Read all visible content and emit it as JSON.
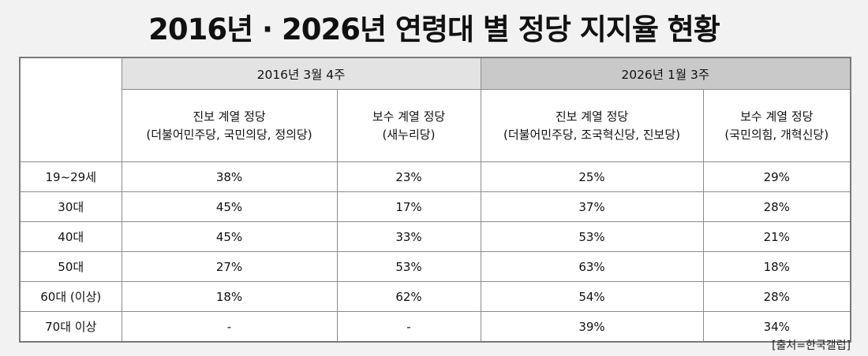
{
  "title": "2016년 · 2026년 연령대 별 정당 지지율 현황",
  "source": "[출처=한국갤럽]",
  "chart_data": {
    "type": "table",
    "title": "2016년 · 2026년 연령대 별 정당 지지율 현황",
    "periods": [
      "2016년 3월 4주",
      "2026년 1월 3주"
    ],
    "columns": [
      {
        "period": "2016년 3월 4주",
        "name": "진보 계열 정당",
        "parties": "(더불어민주당, 국민의당, 정의당)"
      },
      {
        "period": "2016년 3월 4주",
        "name": "보수 계열 정당",
        "parties": "(새누리당)"
      },
      {
        "period": "2026년 1월 3주",
        "name": "진보 계열 정당",
        "parties": "(더불어민주당, 조국혁신당, 진보당)"
      },
      {
        "period": "2026년 1월 3주",
        "name": "보수 계열 정당",
        "parties": "(국민의힘, 개혁신당)"
      }
    ],
    "rows": [
      {
        "age": "19~29세",
        "values": [
          "38%",
          "23%",
          "25%",
          "29%"
        ]
      },
      {
        "age": "30대",
        "values": [
          "45%",
          "17%",
          "37%",
          "28%"
        ]
      },
      {
        "age": "40대",
        "values": [
          "45%",
          "33%",
          "53%",
          "21%"
        ]
      },
      {
        "age": "50대",
        "values": [
          "27%",
          "53%",
          "63%",
          "18%"
        ]
      },
      {
        "age": "60대 (이상)",
        "values": [
          "18%",
          "62%",
          "54%",
          "28%"
        ]
      },
      {
        "age": "70대 이상",
        "values": [
          "-",
          "-",
          "39%",
          "34%"
        ]
      }
    ]
  }
}
